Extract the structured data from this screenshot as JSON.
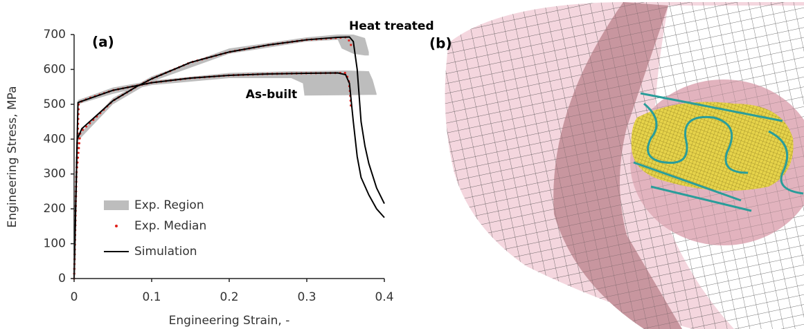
{
  "chart_data": {
    "type": "line",
    "panel_label": "(a)",
    "x_label": "Engineering Strain, -",
    "y_label": "Engineering Stress, MPa",
    "annotations": [
      "Heat treated",
      "As-built"
    ],
    "xlim": [
      0,
      0.4
    ],
    "xticks": [
      0,
      0.1,
      0.2,
      0.3,
      0.4
    ],
    "ylim": [
      0,
      700
    ],
    "yticks": [
      0,
      100,
      200,
      300,
      400,
      500,
      600,
      700
    ],
    "series": [
      {
        "name": "Exp. Region",
        "color": "#bdbdbd",
        "style": "band",
        "curves": [
          {
            "x": [
              0,
              0.005,
              0.05,
              0.1,
              0.2,
              0.28,
              0.295,
              0.297,
              0.35,
              0.38,
              0.385,
              0.39
            ],
            "low": [
              0,
              500,
              530,
              555,
              575,
              575,
              560,
              525,
              526,
              527,
              527,
              527
            ],
            "high": [
              0,
              512,
              548,
              568,
              590,
              595,
              595,
              595,
              597,
              595,
              570,
              530
            ]
          },
          {
            "x": [
              0,
              0.005,
              0.05,
              0.1,
              0.2,
              0.3,
              0.34,
              0.345,
              0.36,
              0.375,
              0.38
            ],
            "low": [
              0,
              395,
              500,
              565,
              645,
              680,
              685,
              660,
              645,
              640,
              640
            ],
            "high": [
              0,
              410,
              518,
              580,
              660,
              692,
              700,
              700,
              700,
              690,
              650
            ]
          }
        ]
      },
      {
        "name": "Exp. Median",
        "color": "#e0201b",
        "style": "dots",
        "curves": [
          {
            "x": [
              0,
              0.003,
              0.006,
              0.02,
              0.05,
              0.1,
              0.15,
              0.2,
              0.25,
              0.3,
              0.35,
              0.354,
              0.356,
              0.357
            ],
            "values": [
              0,
              300,
              505,
              518,
              540,
              562,
              575,
              583,
              587,
              589,
              590,
              570,
              530,
              490
            ]
          },
          {
            "x": [
              0,
              0.003,
              0.008,
              0.02,
              0.05,
              0.08,
              0.1,
              0.15,
              0.2,
              0.25,
              0.3,
              0.35,
              0.354,
              0.357
            ],
            "values": [
              0,
              300,
              420,
              445,
              510,
              550,
              573,
              620,
              650,
              670,
              685,
              692,
              685,
              670
            ]
          }
        ]
      },
      {
        "name": "Simulation",
        "color": "#000000",
        "style": "line",
        "curves": [
          {
            "x": [
              0,
              0.005,
              0.05,
              0.1,
              0.15,
              0.2,
              0.25,
              0.3,
              0.34,
              0.35,
              0.355,
              0.36,
              0.365,
              0.37,
              0.38,
              0.39,
              0.4
            ],
            "values": [
              0,
              505,
              540,
              562,
              575,
              583,
              587,
              589,
              590,
              585,
              560,
              450,
              350,
              290,
              240,
              200,
              175
            ]
          },
          {
            "x": [
              0,
              0.004,
              0.01,
              0.03,
              0.05,
              0.08,
              0.1,
              0.15,
              0.2,
              0.25,
              0.3,
              0.34,
              0.355,
              0.36,
              0.365,
              0.37,
              0.375,
              0.38,
              0.39,
              0.4
            ],
            "values": [
              0,
              400,
              430,
              470,
              510,
              550,
              573,
              620,
              650,
              670,
              685,
              692,
              693,
              680,
              600,
              450,
              380,
              330,
              260,
              215
            ]
          }
        ]
      }
    ]
  },
  "image_panel": {
    "label": "(b)"
  }
}
